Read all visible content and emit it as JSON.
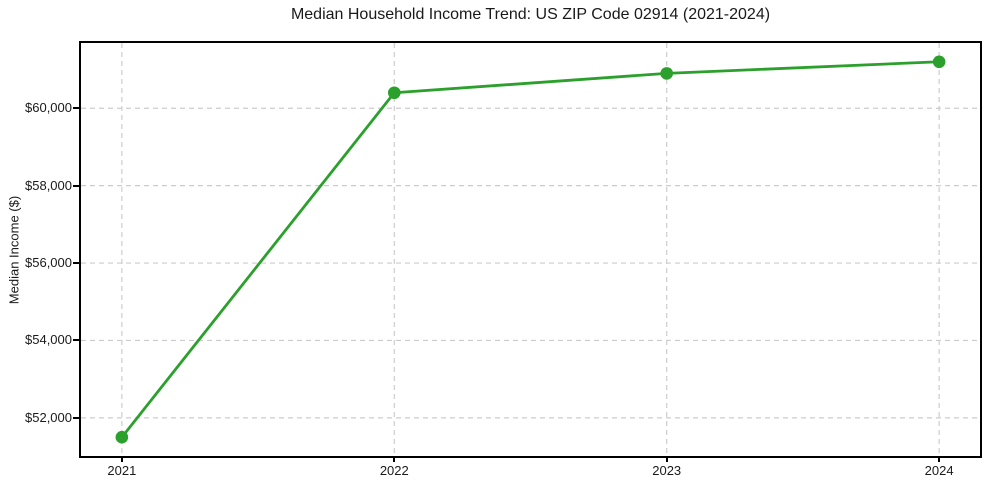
{
  "chart_data": {
    "type": "line",
    "title": "Median Household Income Trend: US ZIP Code 02914 (2021-2024)",
    "xlabel": "",
    "ylabel": "Median Income ($)",
    "x": [
      2021,
      2022,
      2023,
      2024
    ],
    "series": [
      {
        "name": "Median Household Income",
        "values": [
          51500,
          60400,
          60900,
          61200
        ]
      }
    ],
    "xticks": [
      {
        "value": 2021,
        "label": "2021"
      },
      {
        "value": 2022,
        "label": "2022"
      },
      {
        "value": 2023,
        "label": "2023"
      },
      {
        "value": 2024,
        "label": "2024"
      }
    ],
    "yticks": [
      {
        "value": 52000,
        "label": "$52,000"
      },
      {
        "value": 54000,
        "label": "$54,000"
      },
      {
        "value": 56000,
        "label": "$56,000"
      },
      {
        "value": 58000,
        "label": "$58,000"
      },
      {
        "value": 60000,
        "label": "$60,000"
      }
    ],
    "xlim": [
      2020.85,
      2024.15
    ],
    "ylim": [
      51015,
      61685
    ],
    "grid": true,
    "grid_style": "dashed",
    "legend": false,
    "colors": {
      "line": "#2ca02c",
      "marker": "#2ca02c",
      "grid": "#cccccc",
      "spine": "#000000",
      "text": "#1a1a1a",
      "background": "#ffffff"
    }
  }
}
